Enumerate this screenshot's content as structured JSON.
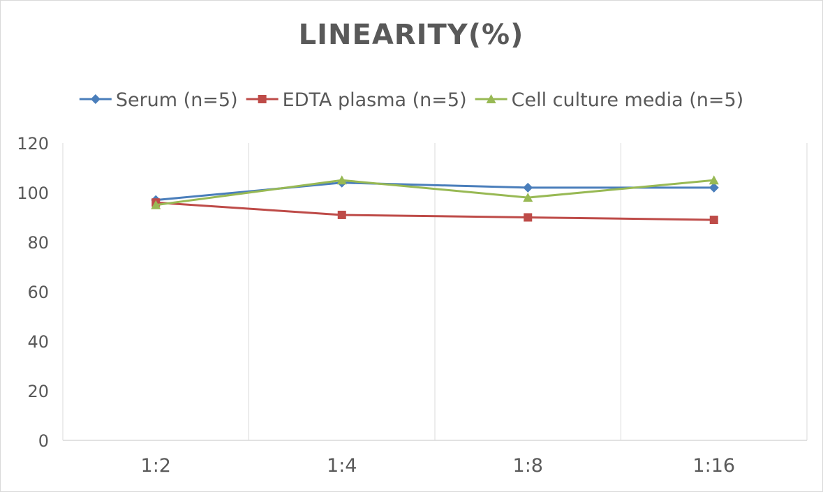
{
  "chart_data": {
    "type": "line",
    "title": "LINEARITY(%)",
    "categories": [
      "1:2",
      "1:4",
      "1:8",
      "1:16"
    ],
    "ylim": [
      0,
      120
    ],
    "yticks": [
      0,
      20,
      40,
      60,
      80,
      100,
      120
    ],
    "grid": "vertical",
    "legend_position": "top",
    "series": [
      {
        "name": "Serum (n=5)",
        "values": [
          97,
          104,
          102,
          102
        ],
        "color": "#4a7ebb",
        "marker": "diamond"
      },
      {
        "name": "EDTA plasma (n=5)",
        "values": [
          96,
          91,
          90,
          89
        ],
        "color": "#be4b48",
        "marker": "square"
      },
      {
        "name": "Cell culture media (n=5)",
        "values": [
          95,
          105,
          98,
          105
        ],
        "color": "#98b954",
        "marker": "triangle"
      }
    ]
  }
}
